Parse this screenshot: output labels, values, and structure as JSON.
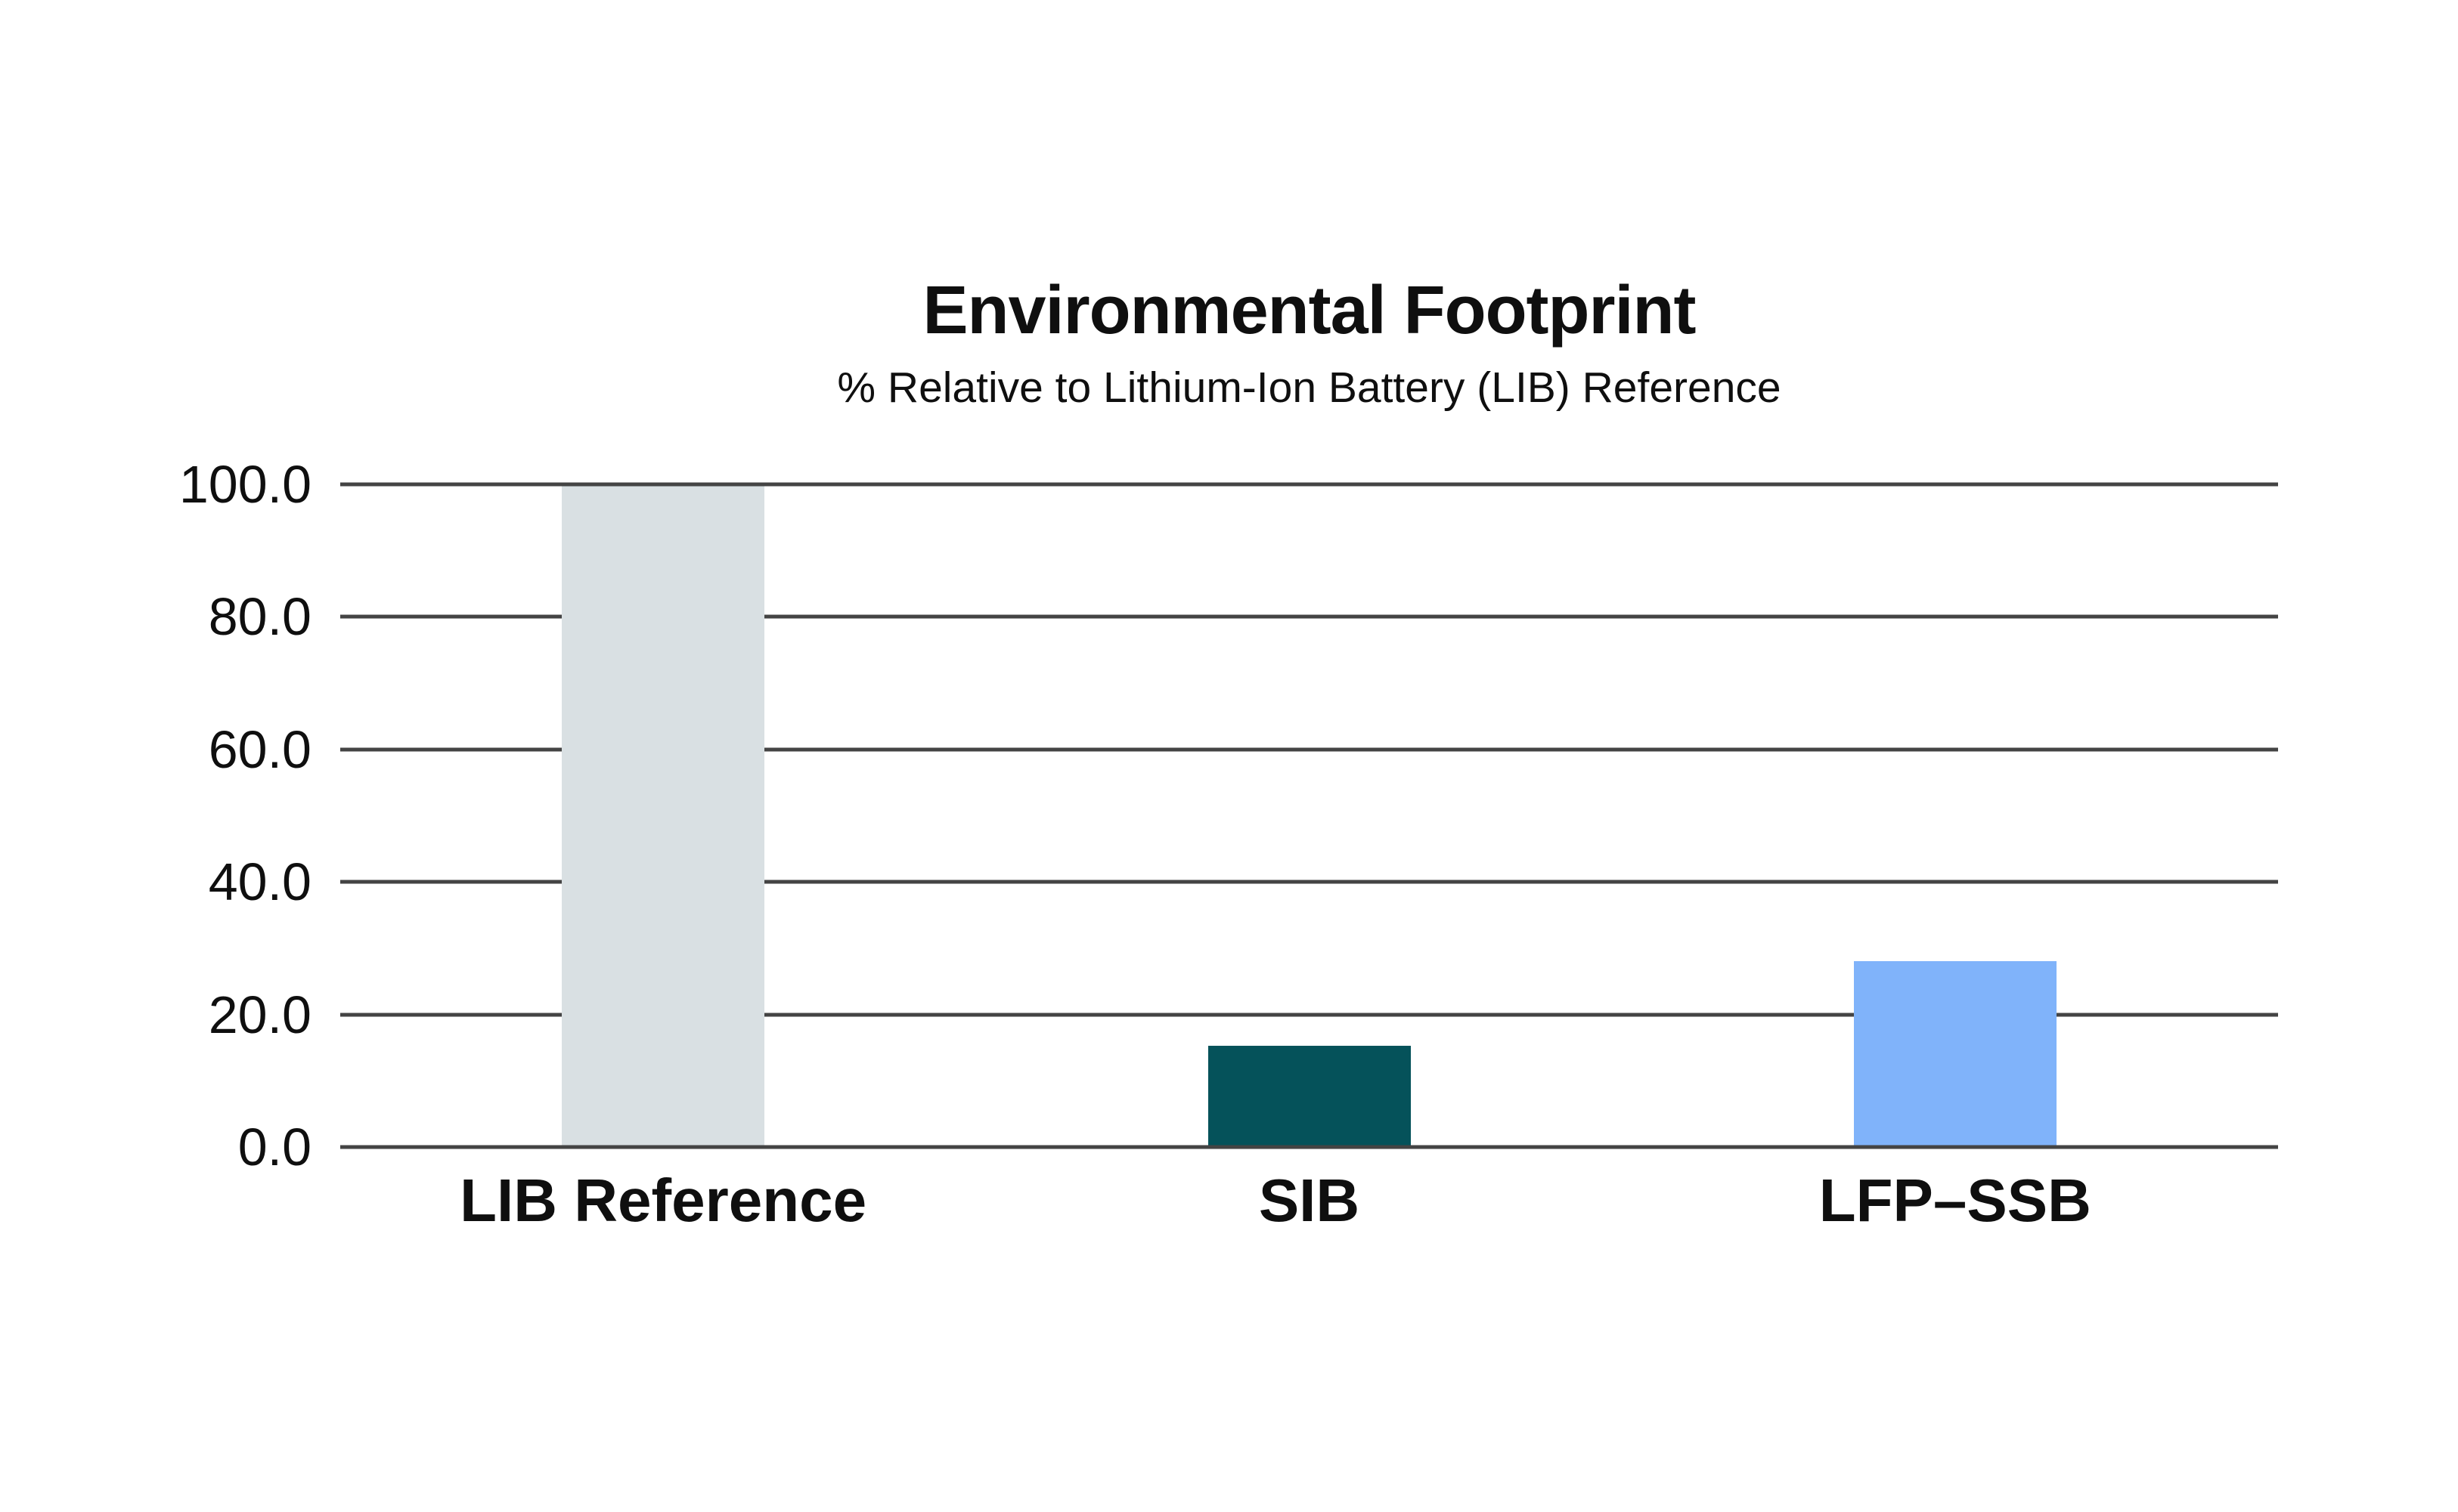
{
  "title": "Environmental Footprint",
  "subtitle": "% Relative to Lithium-Ion Battery (LIB) Reference",
  "chart_data": {
    "type": "bar",
    "title": "Environmental Footprint",
    "subtitle": "% Relative to Lithium-Ion Battery (LIB) Reference",
    "categories": [
      "LIB Reference",
      "SIB",
      "LFP–SSB"
    ],
    "values": [
      100.0,
      15.3,
      28.0
    ],
    "xlabel": "",
    "ylabel": "",
    "ylim": [
      0,
      100
    ],
    "yticks": [
      "0.0",
      "20.0",
      "40.0",
      "60.0",
      "80.0",
      "100.0"
    ],
    "grid": true,
    "legend": false,
    "colors": {
      "bar_colors": [
        "#d9e0e3",
        "#05525a",
        "#80b3fa"
      ],
      "gridline": "#444444",
      "background": "#ffffff",
      "text": "#0f0f0f"
    }
  }
}
